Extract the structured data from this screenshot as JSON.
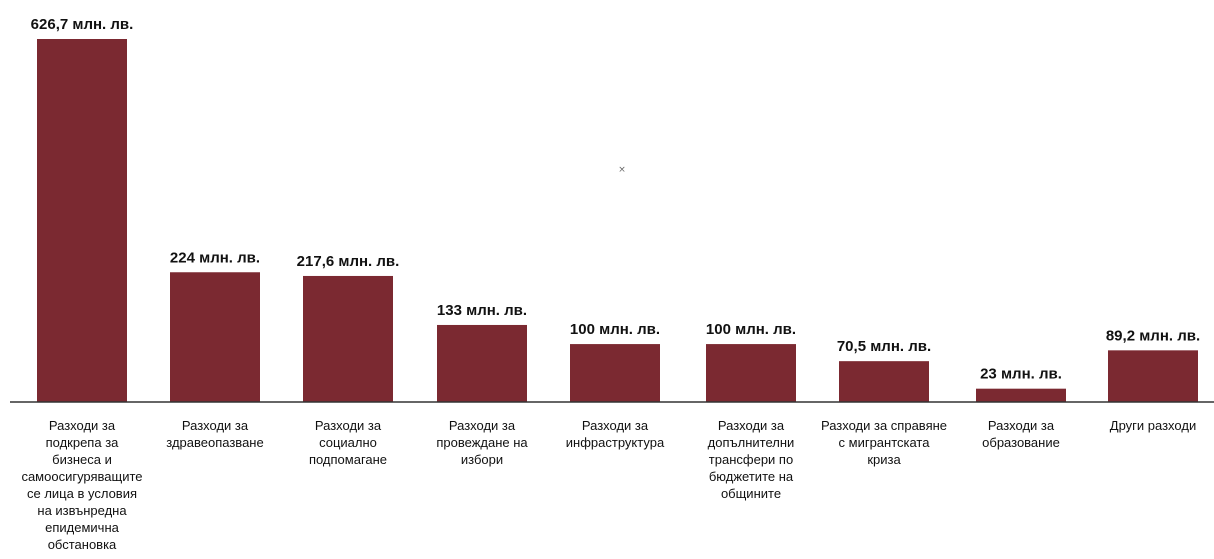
{
  "chart_data": {
    "type": "bar",
    "categories": [
      [
        "Разходи за",
        "подкрепа за",
        "бизнеса и",
        "самоосигуряващите",
        "се лица в условия",
        "на извънредна",
        "епидемична",
        "обстановка"
      ],
      [
        "Разходи за",
        "здравеопазване"
      ],
      [
        "Разходи за",
        "социално",
        "подпомагане"
      ],
      [
        "Разходи за",
        "провеждане на",
        "избори"
      ],
      [
        "Разходи за",
        "инфраструктура"
      ],
      [
        "Разходи за",
        "допълнителни",
        "трансфери по",
        "бюджетите на",
        "общините"
      ],
      [
        "Разходи за справяне",
        "с мигрантската",
        "криза"
      ],
      [
        "Разходи за",
        "образование"
      ],
      [
        "Други разходи"
      ]
    ],
    "values": [
      626.7,
      224,
      217.6,
      133,
      100,
      100,
      70.5,
      23,
      89.2
    ],
    "value_labels": [
      "626,7 млн. лв.",
      "224 млн. лв.",
      "217,6 млн. лв.",
      "133 млн. лв.",
      "100 млн. лв.",
      "100 млн. лв.",
      "70,5 млн. лв.",
      "23 млн. лв.",
      "89,2 млн. лв."
    ],
    "bar_color": "#7b2931",
    "axis_color": "#333333",
    "grid": false,
    "legend": "none",
    "ylim": [
      0,
      626.7
    ]
  },
  "stray_mark": "×"
}
